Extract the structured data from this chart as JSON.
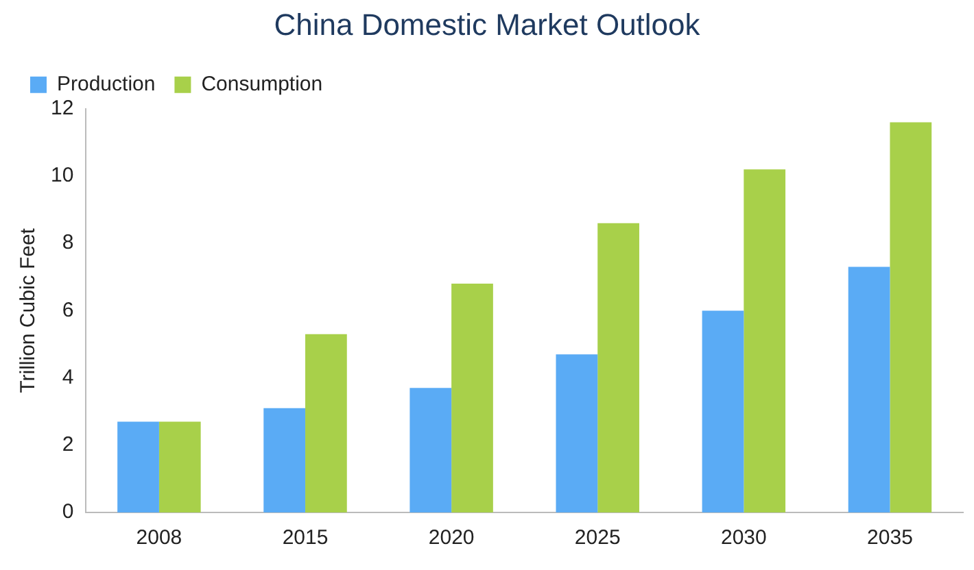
{
  "chart_data": {
    "type": "bar",
    "title": "China Domestic Market Outlook",
    "ylabel": "Trillion Cubic Feet",
    "categories": [
      "2008",
      "2015",
      "2020",
      "2025",
      "2030",
      "2035"
    ],
    "series": [
      {
        "name": "Production",
        "color": "#5aabf5",
        "values": [
          2.7,
          3.1,
          3.7,
          4.7,
          6.0,
          7.3
        ]
      },
      {
        "name": "Consumption",
        "color": "#a8d04a",
        "values": [
          2.7,
          5.3,
          6.8,
          8.6,
          10.2,
          11.6
        ]
      }
    ],
    "ylim": [
      0,
      12
    ],
    "yticks": [
      0,
      2,
      4,
      6,
      8,
      10,
      12
    ],
    "grid": false,
    "legend": "top left"
  }
}
